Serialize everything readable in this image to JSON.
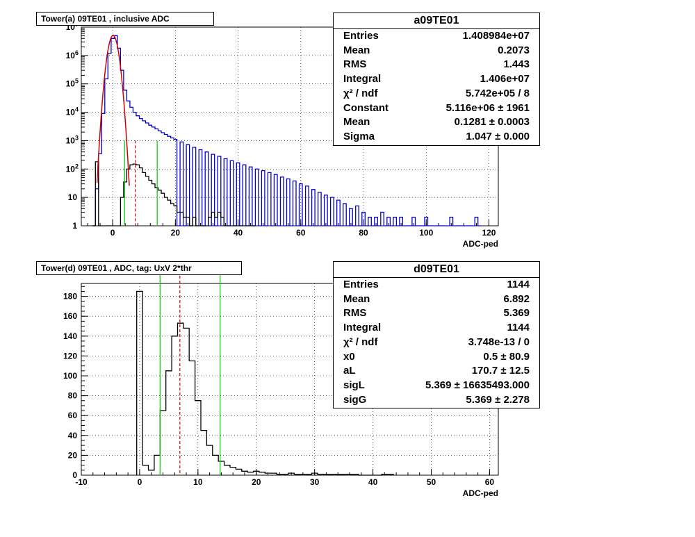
{
  "chart_data": [
    {
      "type": "histogram",
      "title": "Tower(a) 09TE01 , inclusive ADC",
      "xlabel": "ADC-ped",
      "xlim": [
        -10,
        123
      ],
      "ylim": [
        1,
        10000000
      ],
      "yscale": "log",
      "grid": true,
      "xticks": [
        "0",
        "20",
        "40",
        "60",
        "80",
        "100",
        "120"
      ],
      "yticks": [
        "1",
        "10",
        "10^2",
        "10^3",
        "10^4",
        "10^5",
        "10^6",
        "10^7"
      ],
      "series": [
        {
          "color": "#0000cc",
          "bin_width": 1,
          "points": [
            [
              -6,
              1
            ],
            [
              -5,
              20
            ],
            [
              -4,
              350
            ],
            [
              -3,
              9000
            ],
            [
              -2,
              150000
            ],
            [
              -1,
              1200000
            ],
            [
              0,
              4000000
            ],
            [
              1,
              5000000
            ],
            [
              2,
              1800000
            ],
            [
              3,
              300000
            ],
            [
              4,
              60000
            ],
            [
              5,
              25000
            ],
            [
              6,
              15000
            ],
            [
              7,
              10000
            ],
            [
              8,
              7500
            ],
            [
              9,
              6000
            ],
            [
              10,
              5000
            ],
            [
              11,
              4200
            ],
            [
              12,
              3500
            ],
            [
              13,
              3000
            ],
            [
              14,
              2600
            ],
            [
              15,
              2200
            ],
            [
              16,
              1900
            ],
            [
              17,
              1650
            ],
            [
              18,
              1420
            ],
            [
              19,
              1250
            ],
            [
              20,
              1100
            ],
            [
              22,
              900
            ],
            [
              24,
              720
            ],
            [
              26,
              580
            ],
            [
              28,
              480
            ],
            [
              30,
              400
            ],
            [
              32,
              330
            ],
            [
              34,
              280
            ],
            [
              36,
              230
            ],
            [
              38,
              195
            ],
            [
              40,
              165
            ],
            [
              42,
              140
            ],
            [
              44,
              118
            ],
            [
              46,
              100
            ],
            [
              48,
              88
            ],
            [
              50,
              75
            ],
            [
              52,
              64
            ],
            [
              54,
              52
            ],
            [
              56,
              45
            ],
            [
              58,
              38
            ],
            [
              60,
              30
            ],
            [
              62,
              25
            ],
            [
              64,
              19
            ],
            [
              66,
              15
            ],
            [
              68,
              12
            ],
            [
              70,
              10
            ],
            [
              72,
              8
            ],
            [
              74,
              6
            ],
            [
              76,
              4
            ],
            [
              78,
              5
            ],
            [
              80,
              3
            ],
            [
              82,
              2
            ],
            [
              84,
              2
            ],
            [
              86,
              3
            ],
            [
              88,
              2
            ],
            [
              90,
              2
            ],
            [
              92,
              2
            ],
            [
              94,
              1
            ],
            [
              96,
              2
            ],
            [
              98,
              1
            ],
            [
              100,
              2
            ],
            [
              104,
              1
            ],
            [
              108,
              2
            ],
            [
              112,
              1
            ],
            [
              116,
              2
            ],
            [
              117,
              1
            ]
          ]
        },
        {
          "color": "#000000",
          "bin_width": 1,
          "points": [
            [
              -6,
              1
            ],
            [
              -5,
              180
            ],
            [
              -4,
              1
            ],
            [
              -3,
              1
            ],
            [
              -2,
              1
            ],
            [
              2,
              1
            ],
            [
              3,
              10
            ],
            [
              4,
              35
            ],
            [
              5,
              100
            ],
            [
              6,
              140
            ],
            [
              7,
              150
            ],
            [
              8,
              140
            ],
            [
              9,
              110
            ],
            [
              10,
              75
            ],
            [
              11,
              55
            ],
            [
              12,
              40
            ],
            [
              13,
              30
            ],
            [
              14,
              22
            ],
            [
              15,
              18
            ],
            [
              16,
              14
            ],
            [
              17,
              10
            ],
            [
              18,
              8
            ],
            [
              19,
              6
            ],
            [
              20,
              5
            ],
            [
              21,
              3
            ],
            [
              22,
              3
            ],
            [
              23,
              2
            ],
            [
              24,
              2
            ],
            [
              25,
              1
            ],
            [
              26,
              2
            ],
            [
              27,
              1
            ],
            [
              28,
              1
            ],
            [
              30,
              1
            ],
            [
              31,
              2
            ],
            [
              32,
              3
            ],
            [
              33,
              2
            ],
            [
              34,
              3
            ],
            [
              35,
              2
            ],
            [
              36,
              1
            ],
            [
              38,
              1
            ],
            [
              45,
              1
            ]
          ]
        }
      ],
      "gaussian_fit": {
        "color": "#cc0000",
        "constant": 5116000,
        "mean": 0.1281,
        "sigma": 1.047,
        "range": [
          -5,
          5.3
        ]
      },
      "markers": {
        "green": [
          3.8,
          14.2
        ],
        "red_dashed": [
          7.2
        ]
      }
    },
    {
      "type": "histogram",
      "title": "Tower(d) 09TE01 , ADC, tag: UxV 2*thr",
      "xlabel": "ADC-ped",
      "xlim": [
        -10,
        61.5
      ],
      "ylim": [
        0,
        193
      ],
      "grid": true,
      "xticks": [
        "-10",
        "0",
        "10",
        "20",
        "30",
        "40",
        "50",
        "60"
      ],
      "yticks": [
        "0",
        "20",
        "40",
        "60",
        "80",
        "100",
        "120",
        "140",
        "160",
        "180"
      ],
      "series": [
        {
          "color": "#000000",
          "bin_width": 1,
          "points": [
            [
              0,
              185
            ],
            [
              1,
              10
            ],
            [
              2,
              5
            ],
            [
              3,
              20
            ],
            [
              4,
              65
            ],
            [
              5,
              105
            ],
            [
              6,
              140
            ],
            [
              7,
              153
            ],
            [
              8,
              148
            ],
            [
              9,
              115
            ],
            [
              10,
              75
            ],
            [
              11,
              45
            ],
            [
              12,
              30
            ],
            [
              13,
              20
            ],
            [
              14,
              14
            ],
            [
              15,
              10
            ],
            [
              16,
              8
            ],
            [
              17,
              6
            ],
            [
              18,
              4
            ],
            [
              19,
              3
            ],
            [
              20,
              4
            ],
            [
              21,
              3
            ],
            [
              22,
              2
            ],
            [
              23,
              2
            ],
            [
              24,
              1
            ],
            [
              25,
              1
            ],
            [
              26,
              2
            ],
            [
              27,
              1
            ],
            [
              28,
              1
            ],
            [
              29,
              1
            ],
            [
              30,
              2
            ],
            [
              31,
              1
            ],
            [
              32,
              1
            ],
            [
              33,
              1
            ],
            [
              34,
              1
            ],
            [
              35,
              1
            ],
            [
              36,
              1
            ],
            [
              37,
              1
            ],
            [
              42,
              1
            ],
            [
              43,
              1
            ]
          ]
        }
      ],
      "markers": {
        "green": [
          3.5,
          13.8
        ],
        "red_dashed": [
          6.9
        ]
      }
    }
  ],
  "stats_a": {
    "title": "a09TE01",
    "rows": [
      {
        "label": "Entries",
        "value": "1.408984e+07"
      },
      {
        "label": "Mean",
        "value": "0.2073"
      },
      {
        "label": "RMS",
        "value": "1.443"
      },
      {
        "label": "Integral",
        "value": "1.406e+07"
      },
      {
        "label": "χ² / ndf",
        "value": "5.742e+05 / 8"
      },
      {
        "label": "Constant",
        "value": "5.116e+06 ± 1961"
      },
      {
        "label": "Mean",
        "value": "0.1281 ± 0.0003"
      },
      {
        "label": "Sigma",
        "value": "1.047 ± 0.000"
      }
    ]
  },
  "stats_d": {
    "title": "d09TE01",
    "rows": [
      {
        "label": "Entries",
        "value": "1144"
      },
      {
        "label": "Mean",
        "value": "6.892"
      },
      {
        "label": "RMS",
        "value": "5.369"
      },
      {
        "label": "Integral",
        "value": "1144"
      },
      {
        "label": "χ² / ndf",
        "value": "3.748e-13 / 0"
      },
      {
        "label": "x0",
        "value": "0.5 ± 80.9"
      },
      {
        "label": "aL",
        "value": "170.7 ± 12.5"
      },
      {
        "label": "sigL",
        "value": "5.369 ± 16635493.000"
      },
      {
        "label": "sigG",
        "value": "5.369 ± 2.278"
      }
    ]
  }
}
